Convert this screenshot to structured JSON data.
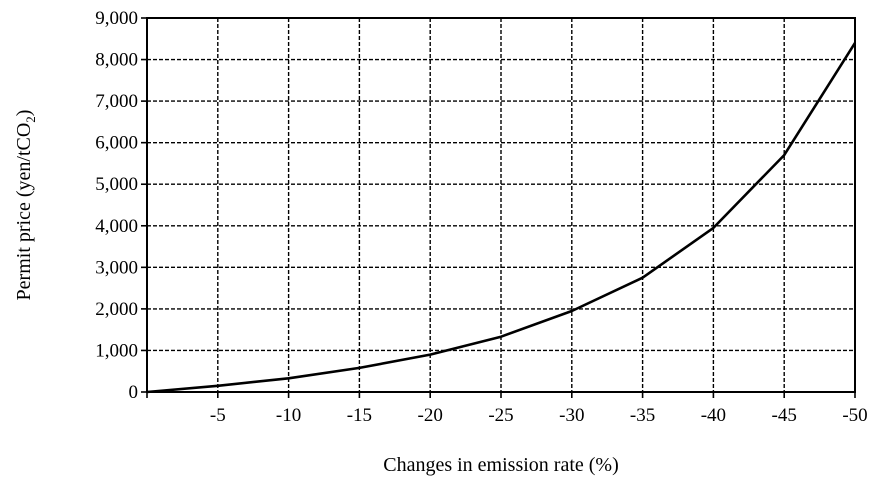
{
  "chart_data": {
    "type": "line",
    "xlabel": "Changes in emission rate (%)",
    "ylabel_main": "Permit price (yen/tCO",
    "ylabel_sub": "2",
    "ylabel_end": ")",
    "x": [
      0,
      -5,
      -10,
      -15,
      -20,
      -25,
      -30,
      -35,
      -40,
      -45,
      -50
    ],
    "x_tick_labels": [
      "-5",
      "-10",
      "-15",
      "-20",
      "-25",
      "-30",
      "-35",
      "-40",
      "-45",
      "-50"
    ],
    "y_tick_labels": [
      "0",
      "1,000",
      "2,000",
      "3,000",
      "4,000",
      "5,000",
      "6,000",
      "7,000",
      "8,000",
      "9,000"
    ],
    "ylim": [
      0,
      9000
    ],
    "xlim": [
      0,
      -50
    ],
    "grid": true,
    "series": [
      {
        "values": [
          0,
          150,
          330,
          580,
          900,
          1330,
          1950,
          2750,
          3950,
          5700,
          8400
        ]
      }
    ]
  }
}
